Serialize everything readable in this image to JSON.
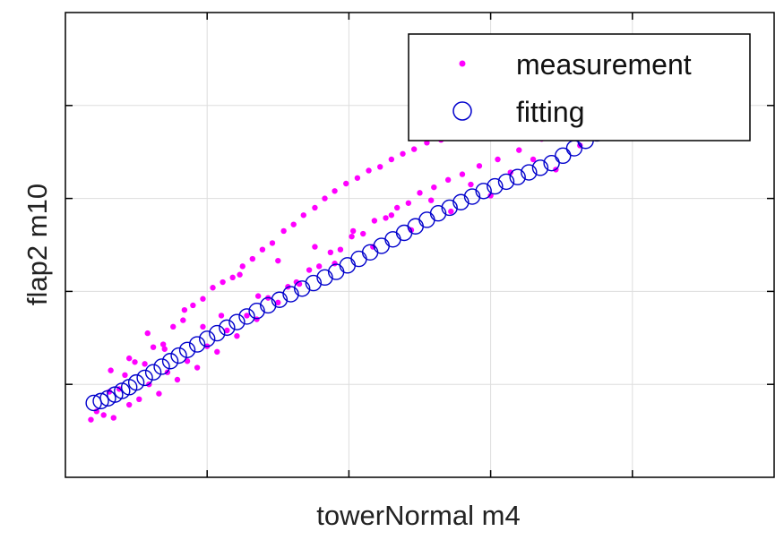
{
  "chart_data": {
    "type": "scatter",
    "title": "",
    "xlabel": "towerNormal m4",
    "ylabel": "flap2 m10",
    "xlim": [
      0,
      5
    ],
    "ylim": [
      0,
      5
    ],
    "grid": true,
    "tick_labels_shown": false,
    "legend_position": "top-right",
    "colors": {
      "measurement": "#ff00ff",
      "fitting": "#0000cc"
    },
    "series": [
      {
        "name": "measurement",
        "marker": "dot",
        "color": "#ff00ff",
        "x": [
          0.18,
          0.22,
          0.27,
          0.31,
          0.34,
          0.38,
          0.42,
          0.45,
          0.49,
          0.52,
          0.56,
          0.59,
          0.62,
          0.66,
          0.69,
          0.72,
          0.76,
          0.79,
          0.83,
          0.86,
          0.9,
          0.93,
          0.97,
          1.0,
          1.04,
          1.07,
          1.11,
          1.14,
          1.18,
          1.21,
          1.25,
          1.28,
          1.32,
          1.35,
          1.39,
          1.43,
          1.46,
          1.5,
          1.54,
          1.57,
          1.61,
          1.65,
          1.68,
          1.72,
          1.76,
          1.79,
          1.83,
          1.87,
          1.9,
          1.94,
          1.98,
          2.02,
          2.06,
          2.1,
          2.14,
          2.18,
          2.22,
          2.26,
          2.3,
          2.34,
          2.38,
          2.42,
          2.46,
          2.5,
          2.55,
          2.6,
          2.65,
          2.7,
          2.75,
          2.8,
          2.86,
          2.92,
          2.98,
          3.05,
          3.12,
          3.2,
          3.28,
          3.36,
          3.45,
          3.55,
          3.65,
          3.75,
          3.86,
          3.97,
          4.1,
          4.22,
          4.35,
          4.47,
          0.32,
          0.45,
          0.58,
          0.7,
          0.84,
          0.97,
          1.1,
          1.23,
          1.36,
          1.5,
          1.63,
          1.76,
          1.9,
          2.03,
          2.17,
          2.3,
          2.44,
          2.58,
          2.72,
          2.86,
          3.0,
          3.14,
          3.3,
          3.46,
          3.63,
          3.81,
          4.0
        ],
        "y": [
          0.62,
          0.71,
          0.67,
          0.92,
          0.64,
          0.95,
          1.1,
          0.78,
          1.24,
          0.84,
          1.22,
          1.0,
          1.4,
          0.9,
          1.43,
          1.13,
          1.62,
          1.05,
          1.69,
          1.25,
          1.85,
          1.18,
          1.92,
          1.41,
          2.04,
          1.35,
          2.1,
          1.58,
          2.15,
          1.52,
          2.27,
          1.74,
          2.35,
          1.7,
          2.45,
          1.93,
          2.52,
          1.88,
          2.65,
          2.05,
          2.72,
          2.08,
          2.82,
          2.23,
          2.9,
          2.27,
          3.0,
          2.42,
          3.08,
          2.45,
          3.16,
          2.59,
          3.22,
          2.62,
          3.3,
          2.76,
          3.34,
          2.79,
          3.42,
          2.9,
          3.48,
          2.95,
          3.53,
          3.06,
          3.6,
          3.12,
          3.63,
          3.2,
          3.69,
          3.26,
          3.72,
          3.35,
          3.74,
          3.42,
          3.79,
          3.52,
          3.86,
          3.64,
          3.94,
          3.77,
          4.03,
          3.88,
          4.1,
          3.98,
          4.16,
          4.08,
          4.2,
          3.94,
          1.15,
          1.28,
          1.55,
          1.38,
          1.8,
          1.62,
          1.74,
          2.18,
          1.95,
          2.33,
          2.1,
          2.48,
          2.3,
          2.65,
          2.48,
          2.82,
          2.66,
          2.98,
          2.86,
          3.15,
          3.03,
          3.28,
          3.42,
          3.31,
          3.57,
          3.72,
          3.9
        ]
      },
      {
        "name": "fitting",
        "marker": "circle",
        "color": "#0000cc",
        "x": [
          0.2,
          0.25,
          0.3,
          0.35,
          0.4,
          0.45,
          0.5,
          0.56,
          0.62,
          0.68,
          0.74,
          0.8,
          0.86,
          0.93,
          1.0,
          1.07,
          1.14,
          1.21,
          1.28,
          1.35,
          1.43,
          1.51,
          1.59,
          1.67,
          1.75,
          1.83,
          1.91,
          1.99,
          2.07,
          2.15,
          2.23,
          2.31,
          2.39,
          2.47,
          2.55,
          2.63,
          2.71,
          2.79,
          2.87,
          2.95,
          3.03,
          3.11,
          3.19,
          3.27,
          3.35,
          3.43,
          3.51,
          3.59,
          3.67,
          3.75,
          3.83,
          3.91,
          3.99,
          4.07,
          4.15,
          4.23,
          4.31,
          4.39,
          4.47
        ],
        "y": [
          0.8,
          0.82,
          0.85,
          0.89,
          0.93,
          0.97,
          1.02,
          1.07,
          1.13,
          1.19,
          1.25,
          1.31,
          1.37,
          1.43,
          1.49,
          1.55,
          1.61,
          1.67,
          1.73,
          1.79,
          1.85,
          1.91,
          1.97,
          2.03,
          2.09,
          2.15,
          2.21,
          2.28,
          2.35,
          2.42,
          2.49,
          2.56,
          2.63,
          2.7,
          2.77,
          2.84,
          2.9,
          2.96,
          3.02,
          3.08,
          3.13,
          3.18,
          3.23,
          3.28,
          3.33,
          3.38,
          3.46,
          3.54,
          3.62,
          3.7,
          3.78,
          3.86,
          3.94,
          4.0,
          4.02,
          3.99,
          3.94,
          3.9,
          3.95
        ]
      }
    ]
  }
}
